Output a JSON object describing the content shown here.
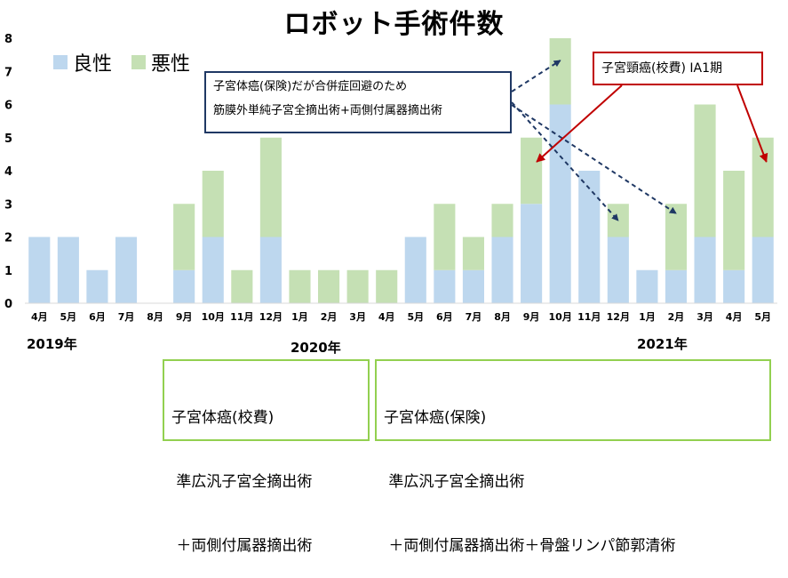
{
  "chart_data": {
    "type": "bar",
    "stacked": true,
    "title": "ロボット手術件数",
    "categories": [
      "4月",
      "5月",
      "6月",
      "7月",
      "8月",
      "9月",
      "10月",
      "11月",
      "12月",
      "1月",
      "2月",
      "3月",
      "4月",
      "5月",
      "6月",
      "7月",
      "8月",
      "9月",
      "10月",
      "11月",
      "12月",
      "1月",
      "2月",
      "3月",
      "4月",
      "5月"
    ],
    "series": [
      {
        "name": "良性",
        "color": "#bdd7ee",
        "values": [
          2,
          2,
          1,
          2,
          0,
          1,
          2,
          0,
          2,
          0,
          0,
          0,
          0,
          2,
          1,
          1,
          2,
          3,
          6,
          4,
          2,
          1,
          1,
          2,
          1,
          2
        ]
      },
      {
        "name": "悪性",
        "color": "#c5e0b4",
        "values": [
          0,
          0,
          0,
          0,
          0,
          2,
          2,
          1,
          3,
          1,
          1,
          1,
          1,
          0,
          2,
          1,
          1,
          2,
          2,
          0,
          1,
          0,
          2,
          4,
          3,
          3
        ]
      }
    ],
    "ylim": [
      0,
      8
    ],
    "yticks": [
      0,
      1,
      2,
      3,
      4,
      5,
      6,
      7,
      8
    ],
    "grid": false,
    "legend_position": "top-left",
    "year_labels": [
      "2019年",
      "2020年",
      "2021年"
    ],
    "annotations": {
      "blue_callout": [
        "子宮体癌(保険)だが合併症回避のため",
        "筋膜外単純子宮全摘出術+両側付属器摘出術"
      ],
      "red_callout": "子宮頸癌(校費) IA1期"
    }
  },
  "notes": {
    "left": [
      "子宮体癌(校費)",
      " 準広汎子宮全摘出術",
      " ＋両側付属器摘出術"
    ],
    "right": [
      "子宮体癌(保険)",
      " 準広汎子宮全摘出術",
      " ＋両側付属器摘出術＋骨盤リンパ節郭清術"
    ]
  },
  "colors": {
    "callout_blue": "#1f3864",
    "callout_red": "#c00000",
    "note_border": "#92d050"
  }
}
